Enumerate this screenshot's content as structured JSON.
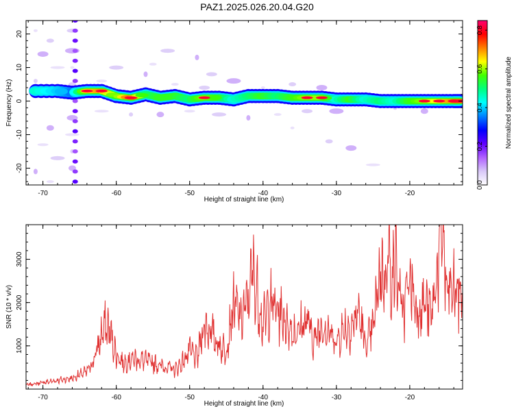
{
  "title": "PAZ1.2025.026.20.04.G20",
  "chart_data": [
    {
      "type": "heatmap",
      "xlabel": "Height of straight line (km)",
      "ylabel": "Frequency (Hz)",
      "xlim": [
        -72.3,
        -12.8
      ],
      "ylim": [
        -25,
        24
      ],
      "x_ticks": [
        -70,
        -60,
        -50,
        -40,
        -30,
        -20
      ],
      "y_ticks": [
        -20,
        -10,
        0,
        10,
        20
      ],
      "colorbar": {
        "label": "Normalized spectral amplitude",
        "range": [
          0,
          0.85
        ],
        "ticks": [
          0.0,
          0.2,
          0.4,
          0.6,
          0.8
        ],
        "colormap": [
          "#ffffff",
          "#d8c8f8",
          "#b060ff",
          "#6000ff",
          "#0000ff",
          "#0080ff",
          "#00ffff",
          "#00ff80",
          "#40ff00",
          "#ffff00",
          "#ff8000",
          "#ff0000",
          "#ff0070"
        ]
      },
      "ridge": {
        "x": [
          -71,
          -68,
          -66,
          -64,
          -62,
          -60,
          -58,
          -56,
          -54,
          -52,
          -50,
          -48,
          -46,
          -44,
          -42,
          -40,
          -38,
          -36,
          -34,
          -32,
          -30,
          -28,
          -26,
          -24,
          -22,
          -20,
          -18,
          -16,
          -14,
          -13
        ],
        "frequency": [
          3.0,
          3.0,
          2.5,
          3.0,
          3.0,
          1.5,
          1.0,
          2.0,
          1.0,
          1.5,
          0.5,
          1.0,
          1.0,
          0.5,
          1.5,
          1.5,
          1.5,
          1.0,
          1.0,
          1.0,
          0.5,
          0.5,
          0.5,
          0.0,
          0.0,
          0.0,
          0.0,
          0.0,
          0.0,
          0.0
        ],
        "amplitude": [
          0.45,
          0.4,
          0.35,
          0.65,
          0.7,
          0.55,
          0.75,
          0.5,
          0.55,
          0.55,
          0.5,
          0.6,
          0.55,
          0.45,
          0.5,
          0.55,
          0.5,
          0.55,
          0.6,
          0.6,
          0.45,
          0.55,
          0.45,
          0.5,
          0.45,
          0.55,
          0.6,
          0.65,
          0.7,
          0.85
        ]
      }
    },
    {
      "type": "line",
      "xlabel": "Height of straight line (km)",
      "ylabel": "SNR (10 * v/v)",
      "xlim": [
        -72.3,
        -12.8
      ],
      "ylim": [
        0,
        3800
      ],
      "x_ticks": [
        -70,
        -60,
        -50,
        -40,
        -30,
        -20
      ],
      "y_ticks": [
        1000,
        2000,
        3000
      ],
      "color": "#e03030",
      "series": [
        {
          "x": [
            -72,
            -70,
            -68,
            -66,
            -64,
            -63,
            -62,
            -61.5,
            -61,
            -60,
            -59,
            -58,
            -56,
            -54,
            -52,
            -51,
            -50,
            -49,
            -48,
            -47,
            -46,
            -45,
            -44,
            -43,
            -42,
            -41.5,
            -41,
            -40,
            -39,
            -38,
            -37,
            -36,
            -35,
            -34,
            -33,
            -32,
            -31,
            -30,
            -29,
            -28,
            -27,
            -26,
            -25,
            -24,
            -23.5,
            -23,
            -22.5,
            -22,
            -21,
            -20,
            -19,
            -18,
            -17,
            -16,
            -15.5,
            -15,
            -14,
            -13
          ],
          "values": [
            100,
            150,
            200,
            250,
            400,
            700,
            1250,
            1450,
            1400,
            800,
            600,
            700,
            650,
            550,
            450,
            600,
            900,
            700,
            1500,
            1300,
            1000,
            900,
            2000,
            1600,
            2100,
            2700,
            2400,
            1500,
            2000,
            1800,
            1600,
            1300,
            1400,
            1600,
            1100,
            1500,
            1300,
            1100,
            1400,
            1400,
            1800,
            1000,
            1400,
            2800,
            2500,
            3200,
            2600,
            3000,
            1700,
            2600,
            1800,
            2000,
            1700,
            3100,
            3700,
            2200,
            2300,
            2200
          ]
        }
      ]
    }
  ]
}
